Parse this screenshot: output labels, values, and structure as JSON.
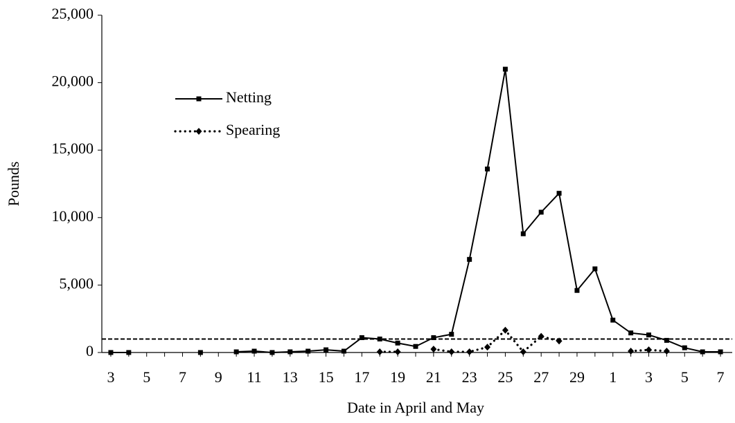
{
  "chart_data": {
    "type": "line",
    "x_label": "Date in April and May",
    "y_label": "Pounds",
    "categories": [
      "3",
      null,
      "5",
      null,
      "7",
      null,
      "9",
      null,
      "11",
      null,
      "13",
      null,
      "15",
      null,
      "17",
      null,
      "19",
      null,
      "21",
      null,
      "23",
      null,
      "25",
      null,
      "27",
      null,
      "29",
      null,
      "1",
      null,
      "3",
      null,
      "5",
      null,
      "7"
    ],
    "series": [
      {
        "name": "Netting",
        "color": "#000000",
        "marker": "square",
        "style": "solid",
        "values": [
          0,
          0,
          null,
          null,
          null,
          0,
          null,
          50,
          100,
          0,
          50,
          100,
          200,
          100,
          1100,
          1000,
          700,
          450,
          1100,
          1350,
          6900,
          13600,
          21000,
          8800,
          10400,
          11800,
          4600,
          6200,
          2400,
          1450,
          1300,
          900,
          350,
          50,
          50
        ]
      },
      {
        "name": "Spearing",
        "color": "#000000",
        "marker": "diamond",
        "style": "dotted",
        "values": [
          null,
          null,
          null,
          null,
          null,
          null,
          null,
          null,
          null,
          null,
          null,
          null,
          null,
          null,
          null,
          50,
          50,
          null,
          250,
          50,
          50,
          400,
          1650,
          50,
          1200,
          850,
          null,
          null,
          null,
          100,
          200,
          100,
          null,
          null,
          null
        ]
      }
    ],
    "reference_line": 1000,
    "ylim": [
      0,
      25000
    ],
    "yticks": [
      0,
      {
        "value": 5000,
        "label": "5,000"
      },
      {
        "value": 10000,
        "label": "10,000"
      },
      {
        "value": 15000,
        "label": "15,000"
      },
      {
        "value": 20000,
        "label": "20,000"
      },
      {
        "value": 25000,
        "label": "25,000"
      }
    ],
    "legend": "upper left",
    "grid": false
  }
}
